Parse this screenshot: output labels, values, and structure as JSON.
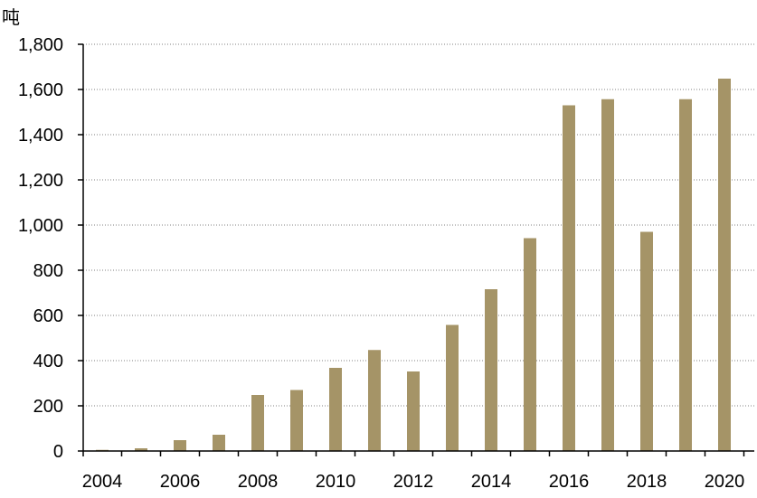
{
  "chart_data": {
    "type": "bar",
    "unit_label": "吨",
    "categories": [
      "2004",
      "2005",
      "2006",
      "2007",
      "2008",
      "2009",
      "2010",
      "2011",
      "2012",
      "2013",
      "2014",
      "2015",
      "2016",
      "2017",
      "2018",
      "2019",
      "2020"
    ],
    "values": [
      5,
      12,
      48,
      72,
      248,
      270,
      368,
      447,
      352,
      558,
      716,
      942,
      1530,
      1557,
      970,
      1557,
      1648
    ],
    "x_tick_labels": [
      "2004",
      "2006",
      "2008",
      "2010",
      "2012",
      "2014",
      "2016",
      "2018",
      "2020"
    ],
    "y_tick_labels": [
      "0",
      "200",
      "400",
      "600",
      "800",
      "1,000",
      "1,200",
      "1,400",
      "1,600",
      "1,800"
    ],
    "ylim": [
      0,
      1800
    ],
    "grid": "horizontal dotted",
    "colors": {
      "bar": "#a59467",
      "grid": "#808080",
      "axis": "#000000"
    }
  }
}
